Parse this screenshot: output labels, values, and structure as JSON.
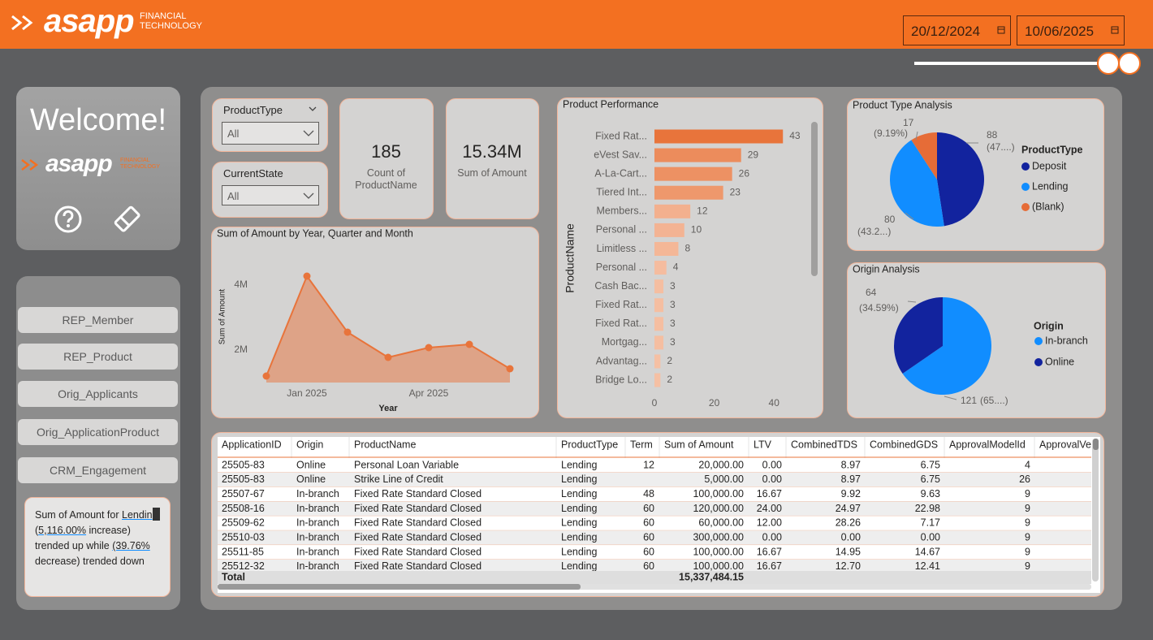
{
  "header": {
    "logo": "asapp",
    "logo_sub": [
      "FINANCIAL",
      "TECHNOLOGY"
    ],
    "dates": [
      "20/12/2024",
      "10/06/2025"
    ]
  },
  "sidebar": {
    "welcome": "Welcome!",
    "logo": "asapp",
    "logo_sub": [
      "FINANCIAL",
      "TECHNOLOGY"
    ],
    "nav": [
      "REP_Member",
      "REP_Product",
      "Orig_Applicants",
      "Orig_ApplicationProduct",
      "CRM_Engagement"
    ],
    "narrative": [
      {
        "text": "Sum of Amount for "
      },
      {
        "text": "Lending",
        "underline": true
      },
      {
        "text": " ("
      },
      {
        "text": "5,116.00%",
        "underline": true
      },
      {
        "text": " increase) trended up while "
      },
      {
        "text": "(39.76%",
        "underline": true
      },
      {
        "text": " decrease) trended down"
      }
    ]
  },
  "filters": [
    {
      "label": "ProductType",
      "value": "All"
    },
    {
      "label": "CurrentState",
      "value": "All"
    }
  ],
  "cards": [
    {
      "value": "185",
      "label": "Count of ProductName"
    },
    {
      "value": "15.34M",
      "label": "Sum of Amount"
    }
  ],
  "chart_data": [
    {
      "type": "area",
      "title": "Sum of Amount by Year, Quarter and Month",
      "xlabel": "Year",
      "ylabel": "Sum of Amount",
      "categories": [
        null,
        "Jan 2025",
        null,
        null,
        "Apr 2025",
        null,
        null
      ],
      "values": [
        1200000,
        4275000,
        2550000,
        1775000,
        2075000,
        2175000,
        1425000
      ],
      "color": "#e8743b",
      "ylim": [
        1000000,
        4500000
      ],
      "yticks": [
        {
          "value": 2000000,
          "label": "2M"
        },
        {
          "value": 4000000,
          "label": "4M"
        }
      ]
    },
    {
      "type": "hbar",
      "title": "Product Performance",
      "ylabel": "ProductName",
      "categories": [
        "Fixed Rat...",
        "eVest Sav...",
        "A-La-Cart...",
        "Tiered Int...",
        "Members...",
        "Personal ...",
        "Limitless ...",
        "Personal ...",
        "Cash Bac...",
        "Fixed Rat...",
        "Fixed Rat...",
        "Mortgag...",
        "Advantag...",
        "Bridge Lo..."
      ],
      "values": [
        43,
        29,
        26,
        23,
        12,
        10,
        8,
        4,
        3,
        3,
        3,
        3,
        2,
        2
      ],
      "colors": [
        "#e8743b",
        "#ec8c5c",
        "#ed9163",
        "#ee986c",
        "#f3b08e",
        "#f3b393",
        "#f4b797",
        "#f5bc9f",
        "#f5bea1",
        "#f5bea1",
        "#f5bea1",
        "#f5bea1",
        "#f5c0a4",
        "#f5c0a4"
      ],
      "xlim": [
        0,
        50
      ],
      "xticks": [
        0,
        20,
        40
      ]
    },
    {
      "type": "pie",
      "title": "Product Type Analysis",
      "legend_title": "ProductType",
      "categories": [
        "Deposit",
        "Lending",
        "(Blank)"
      ],
      "values": [
        88,
        80,
        17
      ],
      "pct_labels": [
        "(47....)",
        "(43.2...)",
        "(9.19%)"
      ],
      "colors": [
        "#12239e",
        "#118dff",
        "#e66c37"
      ]
    },
    {
      "type": "pie",
      "title": "Origin Analysis",
      "legend_title": "Origin",
      "categories": [
        "In-branch",
        "Online"
      ],
      "values": [
        121,
        64
      ],
      "pct_labels": [
        "(65....)",
        "(34.59%)"
      ],
      "colors": [
        "#118dff",
        "#12239e"
      ]
    }
  ],
  "table": {
    "columns": [
      "ApplicationID",
      "Origin",
      "ProductName",
      "ProductType",
      "Term",
      "Sum of Amount",
      "LTV",
      "CombinedTDS",
      "CombinedGDS",
      "ApprovalModelId",
      "ApprovalVe"
    ],
    "rows": [
      [
        "25505-83",
        "Online",
        "Personal Loan Variable",
        "Lending",
        "12",
        "20,000.00",
        "0.00",
        "8.97",
        "6.75",
        "4"
      ],
      [
        "25505-83",
        "Online",
        "Strike Line of Credit",
        "Lending",
        null,
        "5,000.00",
        "0.00",
        "8.97",
        "6.75",
        "26"
      ],
      [
        "25507-67",
        "In-branch",
        "Fixed Rate Standard Closed",
        "Lending",
        "48",
        "100,000.00",
        "16.67",
        "9.92",
        "9.63",
        "9"
      ],
      [
        "25508-16",
        "In-branch",
        "Fixed Rate Standard Closed",
        "Lending",
        "60",
        "120,000.00",
        "24.00",
        "24.97",
        "22.98",
        "9"
      ],
      [
        "25509-62",
        "In-branch",
        "Fixed Rate Standard Closed",
        "Lending",
        "60",
        "60,000.00",
        "12.00",
        "28.26",
        "7.17",
        "9"
      ],
      [
        "25510-03",
        "In-branch",
        "Fixed Rate Standard Closed",
        "Lending",
        "60",
        "300,000.00",
        "0.00",
        "0.00",
        "0.00",
        "9"
      ],
      [
        "25511-85",
        "In-branch",
        "Fixed Rate Standard Closed",
        "Lending",
        "60",
        "100,000.00",
        "16.67",
        "14.95",
        "14.67",
        "9"
      ],
      [
        "25512-32",
        "In-branch",
        "Fixed Rate Standard Closed",
        "Lending",
        "60",
        "100,000.00",
        "16.67",
        "12.70",
        "12.41",
        "9"
      ]
    ],
    "total_label": "Total",
    "total_amount": "15,337,484.15"
  }
}
